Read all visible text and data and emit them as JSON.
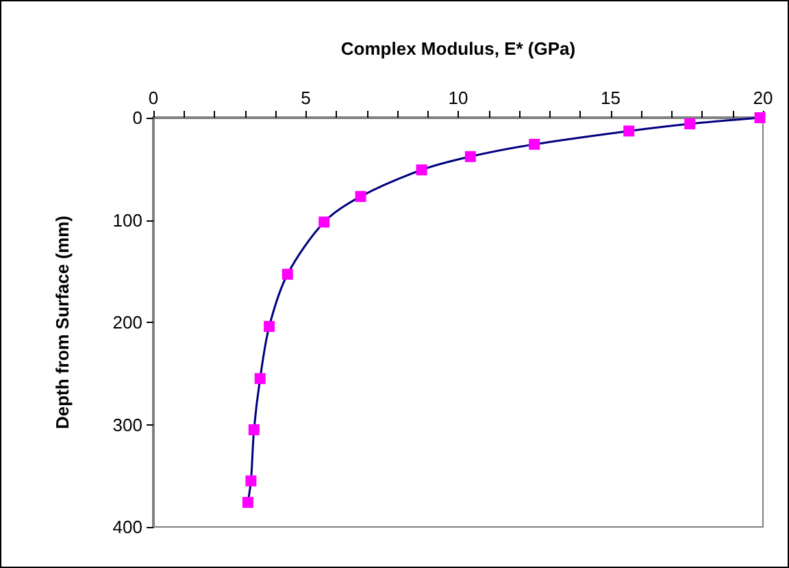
{
  "chart_data": {
    "type": "line",
    "xlabel": "Complex Modulus, E* (GPa)",
    "ylabel": "Depth from Surface (mm)",
    "x": [
      19.9,
      17.6,
      15.6,
      12.5,
      10.4,
      8.8,
      6.8,
      5.6,
      4.4,
      3.8,
      3.5,
      3.3,
      3.2,
      3.1
    ],
    "series": [
      {
        "color": "#000080",
        "marker": "square",
        "colors": [
          "#ff00ff",
          "#ff00ff",
          "#ff00ff",
          "#ff00ff",
          "#ff00ff",
          "#ff00ff",
          "#ff00ff",
          "#ff00ff",
          "#ff00ff",
          "#ff00ff",
          "#ff00ff",
          "#ff00ff",
          "#ff00ff",
          "#ff00ff"
        ],
        "values": [
          0,
          6,
          13,
          26,
          38,
          51,
          77,
          102,
          153,
          204,
          255,
          305,
          355,
          376
        ]
      }
    ],
    "xlim": [
      0,
      20
    ],
    "xticks": [
      0,
      {
        "value": 1,
        "label": null
      },
      {
        "value": 2,
        "label": null
      },
      {
        "value": 3,
        "label": null
      },
      {
        "value": 4,
        "label": null
      },
      5,
      {
        "value": 6,
        "label": null
      },
      {
        "value": 7,
        "label": null
      },
      {
        "value": 8,
        "label": null
      },
      {
        "value": 9,
        "label": null
      },
      10,
      {
        "value": 11,
        "label": null
      },
      {
        "value": 12,
        "label": null
      },
      {
        "value": 13,
        "label": null
      },
      {
        "value": 14,
        "label": null
      },
      15,
      {
        "value": 16,
        "label": null
      },
      {
        "value": 17,
        "label": null
      },
      {
        "value": 18,
        "label": null
      },
      {
        "value": 19,
        "label": null
      },
      20
    ],
    "ylim": [
      400,
      0
    ],
    "yticks": [
      0,
      100,
      200,
      300,
      400
    ],
    "grid": false
  }
}
